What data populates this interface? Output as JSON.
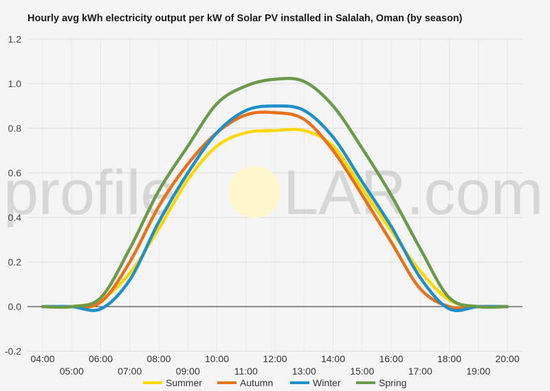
{
  "chart_data": {
    "type": "line",
    "title": "Hourly avg kWh electricity output per kW of Solar PV installed in Salalah, Oman (by season)",
    "xlabel": "",
    "ylabel": "",
    "ylim": [
      -0.2,
      1.2
    ],
    "y_ticks": [
      "1.2",
      "1.0",
      "0.8",
      "0.6",
      "0.4",
      "0.2",
      "0.0",
      "-0.2"
    ],
    "y_tick_values": [
      1.2,
      1.0,
      0.8,
      0.6,
      0.4,
      0.2,
      0.0,
      -0.2
    ],
    "x_tick_labels": [
      "04:00",
      "05:00",
      "06:00",
      "07:00",
      "08:00",
      "09:00",
      "10:00",
      "11:00",
      "12:00",
      "13:00",
      "14:00",
      "15:00",
      "16:00",
      "17:00",
      "18:00",
      "19:00",
      "20:00"
    ],
    "x": [
      4,
      5,
      6,
      7,
      8,
      9,
      10,
      11,
      12,
      13,
      14,
      15,
      16,
      17,
      18,
      19,
      20
    ],
    "grid": true,
    "legend_position": "bottom",
    "series": [
      {
        "name": "Summer",
        "color": "#ffd800",
        "values": [
          0.0,
          0.0,
          0.03,
          0.15,
          0.35,
          0.57,
          0.72,
          0.78,
          0.79,
          0.79,
          0.72,
          0.53,
          0.34,
          0.16,
          0.03,
          0.0,
          0.0
        ]
      },
      {
        "name": "Autumn",
        "color": "#e8711a",
        "values": [
          0.0,
          0.0,
          0.02,
          0.2,
          0.45,
          0.64,
          0.78,
          0.86,
          0.87,
          0.84,
          0.7,
          0.5,
          0.29,
          0.08,
          0.0,
          0.0,
          0.0
        ]
      },
      {
        "name": "Winter",
        "color": "#1e90c8",
        "values": [
          0.0,
          0.0,
          -0.01,
          0.12,
          0.38,
          0.6,
          0.78,
          0.88,
          0.9,
          0.88,
          0.76,
          0.56,
          0.36,
          0.13,
          -0.01,
          0.0,
          0.0
        ]
      },
      {
        "name": "Spring",
        "color": "#6a9a4a",
        "values": [
          0.0,
          0.0,
          0.04,
          0.26,
          0.52,
          0.72,
          0.91,
          0.99,
          1.02,
          1.01,
          0.9,
          0.71,
          0.5,
          0.26,
          0.04,
          0.0,
          0.0
        ]
      }
    ]
  },
  "watermark": {
    "text_left": "profile",
    "text_right": "LAR.com",
    "sun_color": "#fff7cc"
  }
}
